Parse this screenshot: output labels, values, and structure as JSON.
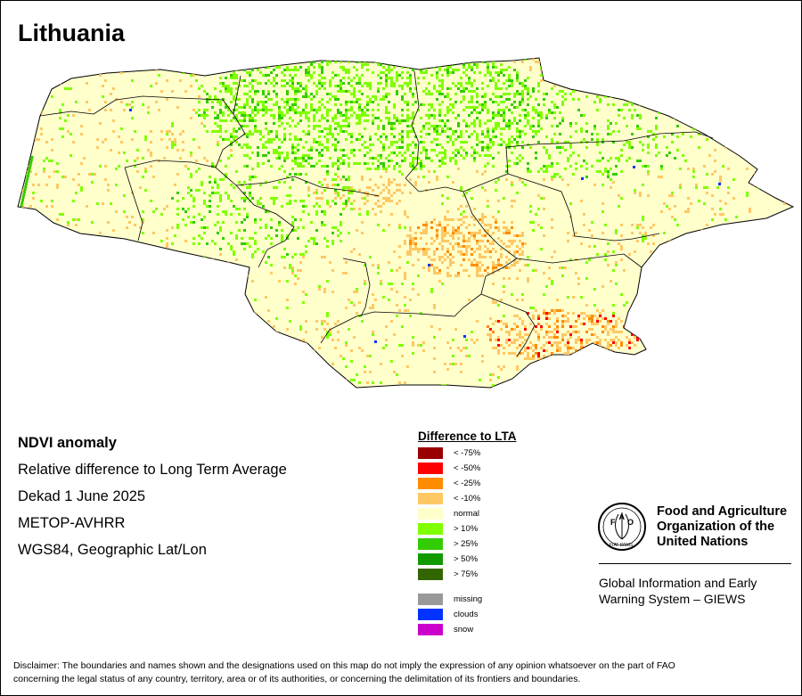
{
  "map": {
    "title": "Lithuania"
  },
  "info": {
    "lines": [
      "NDVI anomaly",
      "Relative difference to Long Term Average",
      "Dekad 1 June 2025",
      "METOP-AVHRR",
      "WGS84, Geographic Lat/Lon"
    ]
  },
  "legend": {
    "title": "Difference to LTA",
    "items": [
      {
        "label": "< -75%",
        "color": "#990000"
      },
      {
        "label": "< -50%",
        "color": "#ff0000"
      },
      {
        "label": "< -25%",
        "color": "#ff8c00"
      },
      {
        "label": "< -10%",
        "color": "#ffc864"
      },
      {
        "label": "normal",
        "color": "#ffffcc"
      },
      {
        "label": "> 10%",
        "color": "#80ff00"
      },
      {
        "label": "> 25%",
        "color": "#33cc00"
      },
      {
        "label": "> 50%",
        "color": "#119900"
      },
      {
        "label": "> 75%",
        "color": "#336600"
      }
    ],
    "extra": [
      {
        "label": "missing",
        "color": "#999999"
      },
      {
        "label": "clouds",
        "color": "#0033ff"
      },
      {
        "label": "snow",
        "color": "#cc00cc"
      }
    ]
  },
  "fao": {
    "org_lines": [
      "Food and Agriculture",
      "Organization of the",
      "United Nations"
    ],
    "giews_lines": [
      "Global Information and Early",
      "Warning System – GIEWS"
    ],
    "logo_letters": [
      "F",
      "A",
      "O"
    ],
    "logo_motto": "FIAT PANIS"
  },
  "disclaimer": {
    "lines": [
      "Disclaimer: The boundaries and names shown and the designations used on this map do not imply the expression of any opinion whatsoever on the part of FAO",
      "concerning the legal status of any country, territory, area or of its authorities, or concerning the delimitation of its frontiers and boundaries."
    ]
  }
}
